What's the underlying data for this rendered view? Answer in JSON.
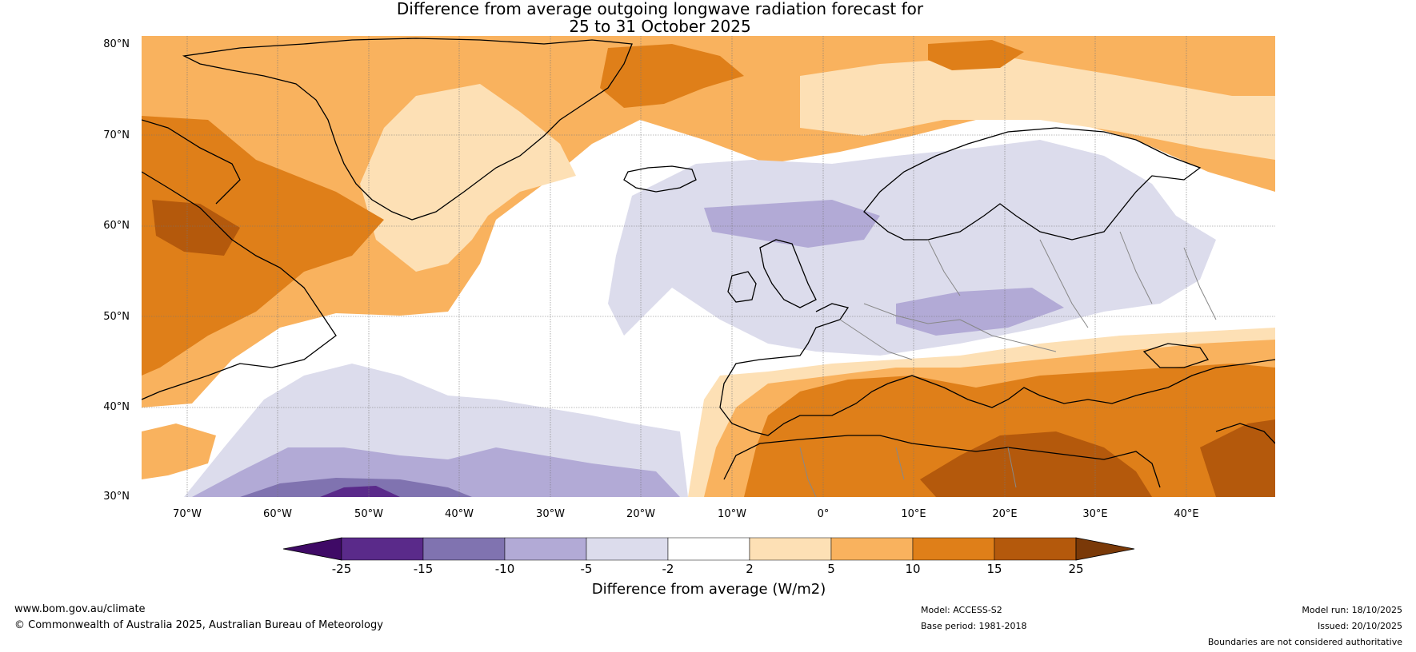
{
  "title": {
    "line1": "Difference from average outgoing longwave radiation forecast for",
    "line2": "25 to 31 October 2025"
  },
  "map": {
    "lat_labels": [
      "80°N",
      "70°N",
      "60°N",
      "50°N",
      "40°N",
      "30°N"
    ],
    "lon_labels": [
      "70°W",
      "60°W",
      "50°W",
      "40°W",
      "30°W",
      "20°W",
      "10°W",
      "0°",
      "10°E",
      "20°E",
      "30°E",
      "40°E"
    ]
  },
  "colorbar": {
    "title": "Difference from average (W/m2)",
    "ticks": [
      "-25",
      "-15",
      "-10",
      "-5",
      "-2",
      "2",
      "5",
      "10",
      "15",
      "25"
    ],
    "colors": [
      "#3f0a66",
      "#5a2a8a",
      "#8073b0",
      "#b2aad6",
      "#dcdcec",
      "#ffffff",
      "#fde0b5",
      "#f9b25e",
      "#df7f19",
      "#b4590c",
      "#7a3908"
    ]
  },
  "footer": {
    "url": "www.bom.gov.au/climate",
    "copyright": "© Commonwealth of Australia 2025, Australian Bureau of Meteorology",
    "model": "Model: ACCESS-S2",
    "base_period": "Base period: 1981-2018",
    "model_run": "Model run: 18/10/2025",
    "issued": "Issued: 20/10/2025",
    "disclaimer": "Boundaries are not considered authoritative"
  }
}
